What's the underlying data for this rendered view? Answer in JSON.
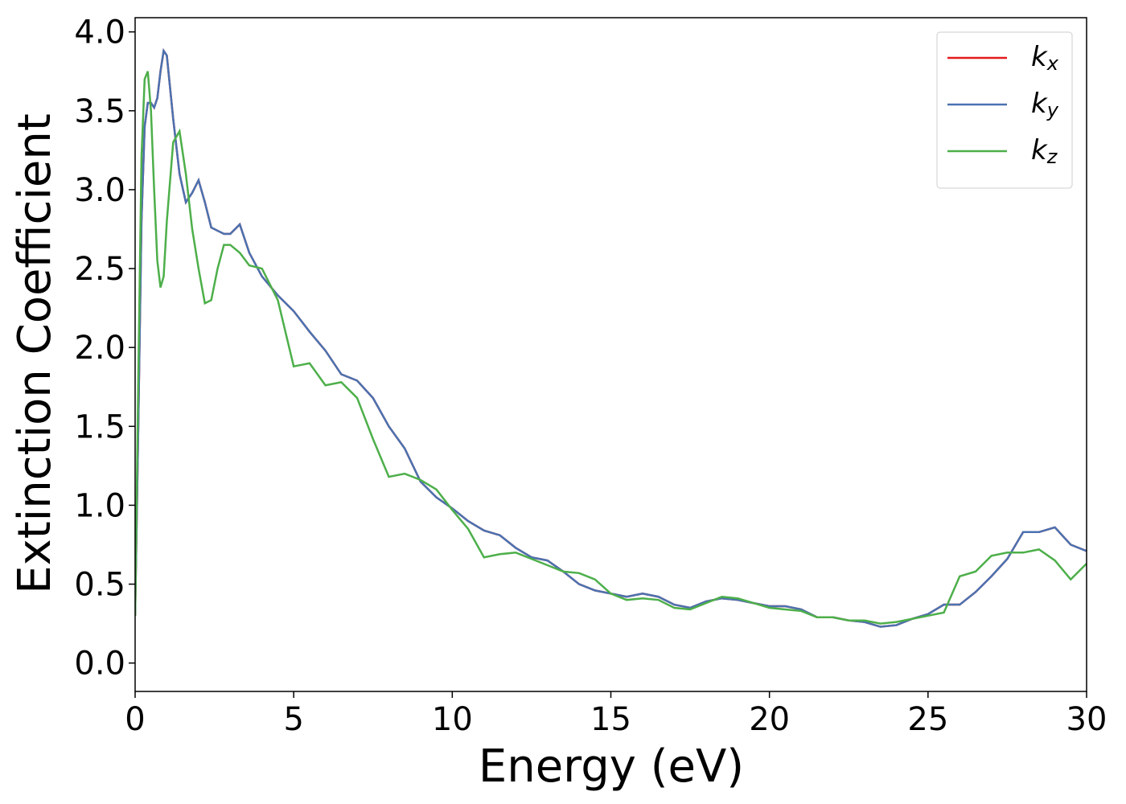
{
  "chart_data": {
    "type": "line",
    "xlabel": "Energy (eV)",
    "ylabel": "Extinction Coefficient",
    "x": [
      0,
      0.1,
      0.2,
      0.3,
      0.4,
      0.5,
      0.6,
      0.7,
      0.8,
      0.9,
      1.0,
      1.2,
      1.4,
      1.6,
      1.8,
      2.0,
      2.2,
      2.4,
      2.6,
      2.8,
      3.0,
      3.3,
      3.6,
      4.0,
      4.5,
      5.0,
      5.5,
      6.0,
      6.5,
      7.0,
      7.5,
      8.0,
      8.5,
      9.0,
      9.5,
      10,
      10.5,
      11,
      11.5,
      12,
      12.5,
      13,
      13.5,
      14,
      14.5,
      15,
      15.5,
      16,
      16.5,
      17,
      17.5,
      18,
      18.5,
      19,
      19.5,
      20,
      20.5,
      21,
      21.5,
      22,
      22.5,
      23,
      23.5,
      24,
      24.5,
      25,
      25.5,
      26,
      26.5,
      27,
      27.5,
      28,
      28.5,
      29,
      29.5,
      30
    ],
    "series": [
      {
        "name": "kx",
        "color": "#e41a1c",
        "values": [
          0.3,
          1.5,
          2.8,
          3.4,
          3.55,
          3.55,
          3.52,
          3.58,
          3.75,
          3.88,
          3.85,
          3.45,
          3.1,
          2.92,
          2.98,
          3.06,
          2.92,
          2.76,
          2.74,
          2.72,
          2.72,
          2.78,
          2.6,
          2.45,
          2.33,
          2.23,
          2.1,
          1.98,
          1.83,
          1.79,
          1.68,
          1.5,
          1.36,
          1.15,
          1.05,
          0.98,
          0.9,
          0.84,
          0.81,
          0.73,
          0.67,
          0.65,
          0.58,
          0.5,
          0.46,
          0.44,
          0.42,
          0.44,
          0.42,
          0.37,
          0.35,
          0.39,
          0.41,
          0.4,
          0.38,
          0.36,
          0.36,
          0.34,
          0.29,
          0.29,
          0.27,
          0.26,
          0.23,
          0.24,
          0.28,
          0.31,
          0.37,
          0.37,
          0.45,
          0.55,
          0.66,
          0.83,
          0.83,
          0.86,
          0.75,
          0.71
        ]
      },
      {
        "name": "ky",
        "color": "#4a72b0",
        "values": [
          0.3,
          1.5,
          2.8,
          3.4,
          3.55,
          3.55,
          3.52,
          3.58,
          3.75,
          3.88,
          3.85,
          3.45,
          3.1,
          2.92,
          2.98,
          3.06,
          2.92,
          2.76,
          2.74,
          2.72,
          2.72,
          2.78,
          2.6,
          2.45,
          2.33,
          2.23,
          2.1,
          1.98,
          1.83,
          1.79,
          1.68,
          1.5,
          1.36,
          1.15,
          1.05,
          0.98,
          0.9,
          0.84,
          0.81,
          0.73,
          0.67,
          0.65,
          0.58,
          0.5,
          0.46,
          0.44,
          0.42,
          0.44,
          0.42,
          0.37,
          0.35,
          0.39,
          0.41,
          0.4,
          0.38,
          0.36,
          0.36,
          0.34,
          0.29,
          0.29,
          0.27,
          0.26,
          0.23,
          0.24,
          0.28,
          0.31,
          0.37,
          0.37,
          0.45,
          0.55,
          0.66,
          0.83,
          0.83,
          0.86,
          0.75,
          0.71
        ]
      },
      {
        "name": "kz",
        "color": "#4daf4a",
        "values": [
          0.3,
          1.8,
          3.2,
          3.7,
          3.75,
          3.5,
          3.0,
          2.55,
          2.38,
          2.45,
          2.8,
          3.3,
          3.37,
          3.1,
          2.75,
          2.5,
          2.28,
          2.3,
          2.5,
          2.65,
          2.65,
          2.6,
          2.52,
          2.5,
          2.3,
          1.88,
          1.9,
          1.76,
          1.78,
          1.68,
          1.42,
          1.18,
          1.2,
          1.16,
          1.1,
          0.97,
          0.85,
          0.67,
          0.69,
          0.7,
          0.66,
          0.62,
          0.58,
          0.57,
          0.53,
          0.44,
          0.4,
          0.41,
          0.4,
          0.35,
          0.34,
          0.38,
          0.42,
          0.41,
          0.38,
          0.35,
          0.34,
          0.33,
          0.29,
          0.29,
          0.27,
          0.27,
          0.25,
          0.26,
          0.28,
          0.3,
          0.32,
          0.55,
          0.58,
          0.68,
          0.7,
          0.7,
          0.72,
          0.65,
          0.53,
          0.63
        ]
      }
    ],
    "xlim": [
      0,
      30
    ],
    "xticks": [
      0,
      5,
      10,
      15,
      20,
      25,
      30
    ],
    "ylim": [
      -0.18,
      4.09
    ],
    "yticks": [
      {
        "value": 0,
        "label": "0.0"
      },
      0.5,
      {
        "value": 1,
        "label": "1.0"
      },
      1.5,
      {
        "value": 2,
        "label": "2.0"
      },
      2.5,
      {
        "value": 3,
        "label": "3.0"
      },
      3.5,
      {
        "value": 4,
        "label": "4.0"
      }
    ],
    "legend": "upper right"
  }
}
